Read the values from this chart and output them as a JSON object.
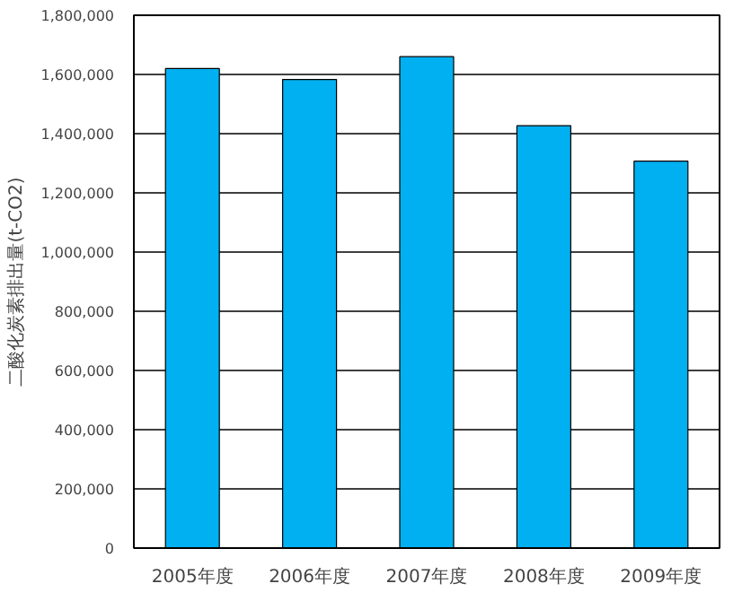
{
  "chart_data": {
    "type": "bar",
    "ylabel": "二酸化炭素排出量(t-CO2)",
    "categories": [
      "2005年度",
      "2006年度",
      "2007年度",
      "2008年度",
      "2009年度"
    ],
    "values": [
      1620000,
      1583000,
      1660000,
      1427000,
      1307000
    ],
    "color": "#00b0f0",
    "ylim": [
      0,
      1800000
    ],
    "yticks": [
      {
        "value": 0,
        "label": "0"
      },
      {
        "value": 200000,
        "label": "200,000"
      },
      {
        "value": 400000,
        "label": "400,000"
      },
      {
        "value": 600000,
        "label": "600,000"
      },
      {
        "value": 800000,
        "label": "800,000"
      },
      {
        "value": 1000000,
        "label": "1,000,000"
      },
      {
        "value": 1200000,
        "label": "1,200,000"
      },
      {
        "value": 1400000,
        "label": "1,400,000"
      },
      {
        "value": 1600000,
        "label": "1,600,000"
      },
      {
        "value": 1800000,
        "label": "1,800,000"
      }
    ],
    "grid": "y"
  }
}
